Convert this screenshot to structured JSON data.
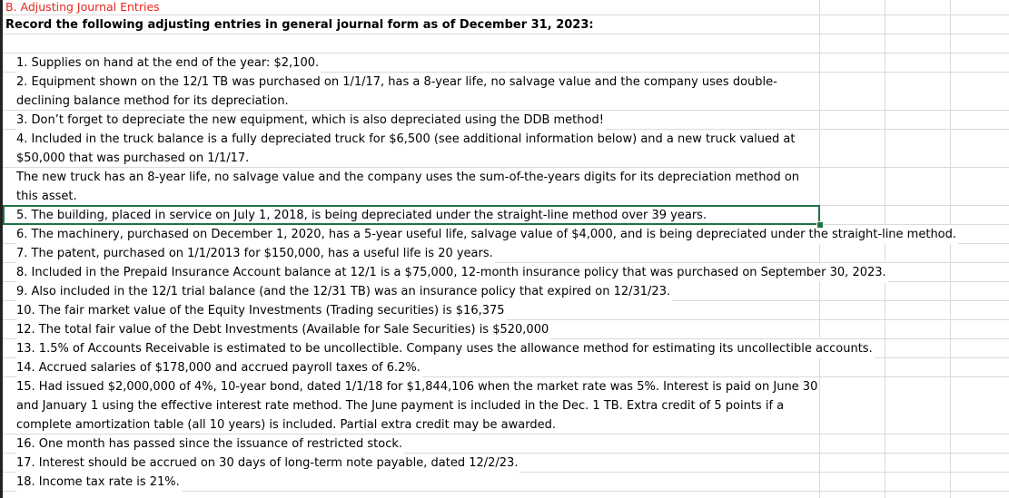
{
  "sheet": {
    "title": "B. Adjusting Journal Entries",
    "instruction": "Record the following adjusting entries in general journal form as of December 31, 2023:",
    "items": [
      "1. Supplies on hand at the end of the year:  $2,100.",
      "2. Equipment shown on the 12/1 TB was purchased on 1/1/17, has a 8-year life, no salvage value and the company uses double-declining balance method for its depreciation.",
      "3. Don’t forget to depreciate the new equipment, which is also depreciated using the DDB method!",
      "4. Included in the truck balance is a fully depreciated truck for $6,500 (see additional information below) and a new truck valued at $50,000 that was purchased on 1/1/17.",
      "The new truck has an 8-year life, no salvage value and the company uses the sum-of-the-years digits for its depreciation method on this asset.",
      "5. The building, placed in service on July 1, 2018, is being depreciated under the straight-line method over 39 years.",
      "6. The machinery, purchased on December 1, 2020, has a 5-year useful life, salvage value of $4,000, and is being depreciated under the straight-line method.",
      "7. The patent, purchased on 1/1/2013 for $150,000, has a useful life is 20 years.",
      "8. Included in the Prepaid Insurance Account balance at 12/1 is a $75,000, 12-month insurance policy that was purchased on September 30, 2023.",
      "9. Also included in the 12/1 trial balance (and the 12/31 TB) was an insurance policy that expired on 12/31/23.",
      "10. The fair market value of the Equity Investments (Trading securities) is $16,375",
      "12. The total fair value of the Debt Investments (Available for Sale Securities) is $520,000",
      "13. 1.5% of Accounts Receivable is estimated to be uncollectible. Company uses the allowance method for estimating its uncollectible accounts.",
      "14. Accrued salaries of $178,000 and accrued payroll taxes of 6.2%.",
      "15. Had issued $2,000,000 of 4%, 10-year bond, dated 1/1/18 for $1,844,106 when the market rate was 5%. Interest is paid on June 30 and January 1 using the effective interest rate method. The June payment is included in the Dec. 1 TB. Extra credit of 5 points if a complete amortization table (all 10 years) is included. Partial extra credit may be awarded.",
      "16. One month has passed since the issuance of restricted stock.",
      "17. Interest should be accrued on 30 days of long-term note payable, dated 12/2/23.",
      "18. Income tax rate is 21%."
    ]
  },
  "colors": {
    "title": "#e8261c",
    "selection": "#217346",
    "gridline": "#dadada"
  }
}
